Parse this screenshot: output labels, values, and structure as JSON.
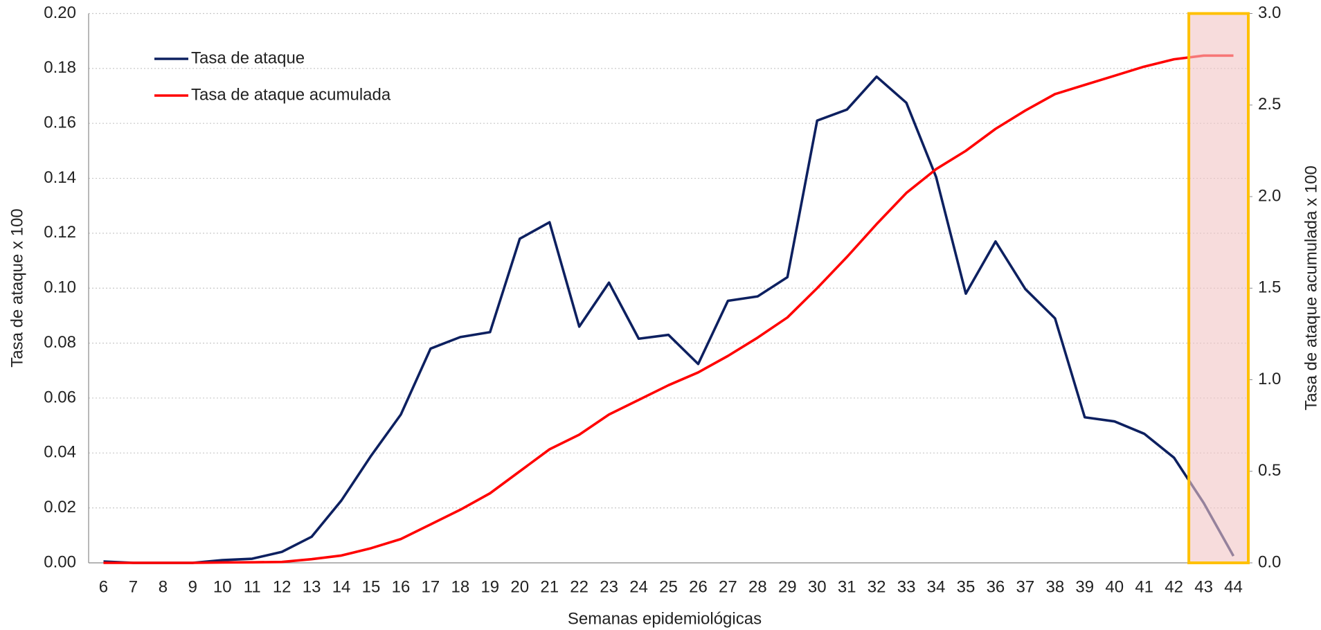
{
  "chart_data": {
    "type": "line",
    "x_label": "Semanas epidemiológicas",
    "y_label": "Tasa de ataque x 100",
    "y2_label": "Tasa de ataque acumulada x 100",
    "x": [
      6,
      7,
      8,
      9,
      10,
      11,
      12,
      13,
      14,
      15,
      16,
      17,
      18,
      19,
      20,
      21,
      22,
      23,
      24,
      25,
      26,
      27,
      28,
      29,
      30,
      31,
      32,
      33,
      34,
      35,
      36,
      37,
      38,
      39,
      40,
      41,
      42,
      43,
      44
    ],
    "xticks": [
      6,
      7,
      8,
      9,
      10,
      11,
      12,
      13,
      14,
      15,
      16,
      17,
      18,
      19,
      20,
      21,
      22,
      23,
      24,
      25,
      26,
      27,
      28,
      29,
      30,
      31,
      32,
      33,
      34,
      35,
      36,
      37,
      38,
      39,
      40,
      41,
      42,
      43,
      44
    ],
    "xlim": [
      5.5,
      44.5
    ],
    "series": [
      {
        "name": "Tasa de ataque",
        "color": "#0d2060",
        "axis": "y",
        "values": [
          0.0005,
          0,
          0,
          0,
          0.001,
          0.0015,
          0.004,
          0.0095,
          0.0227,
          0.039,
          0.054,
          0.078,
          0.0822,
          0.084,
          0.118,
          0.124,
          0.086,
          0.102,
          0.0816,
          0.083,
          0.0724,
          0.0954,
          0.097,
          0.104,
          0.161,
          0.165,
          0.177,
          0.1675,
          0.1405,
          0.098,
          0.117,
          0.0997,
          0.089,
          0.053,
          0.0515,
          0.047,
          0.0383,
          0.0218,
          0.0025
        ]
      },
      {
        "name": "Tasa de ataque acumulada",
        "color": "#ff0000",
        "axis": "y2",
        "values": [
          0,
          0,
          0,
          0,
          0.002,
          0.003,
          0.005,
          0.02,
          0.04,
          0.08,
          0.13,
          0.21,
          0.29,
          0.38,
          0.5,
          0.62,
          0.7,
          0.81,
          0.89,
          0.97,
          1.04,
          1.13,
          1.23,
          1.34,
          1.5,
          1.67,
          1.85,
          2.02,
          2.15,
          2.25,
          2.37,
          2.47,
          2.56,
          2.61,
          2.66,
          2.71,
          2.75,
          2.77,
          2.77
        ]
      }
    ],
    "ylim": [
      0,
      0.2
    ],
    "yticks": [
      {
        "value": 0,
        "label": "0.00"
      },
      {
        "value": 0.02,
        "label": "0.02"
      },
      {
        "value": 0.04,
        "label": "0.04"
      },
      {
        "value": 0.06,
        "label": "0.06"
      },
      {
        "value": 0.08,
        "label": "0.08"
      },
      {
        "value": 0.1,
        "label": "0.10"
      },
      {
        "value": 0.12,
        "label": "0.12"
      },
      {
        "value": 0.14,
        "label": "0.14"
      },
      {
        "value": 0.16,
        "label": "0.16"
      },
      {
        "value": 0.18,
        "label": "0.18"
      },
      {
        "value": 0.2,
        "label": "0.20"
      }
    ],
    "y2lim": [
      0,
      3
    ],
    "y2ticks": [
      {
        "value": 0,
        "label": "0.0"
      },
      {
        "value": 0.5,
        "label": "0.5"
      },
      {
        "value": 1,
        "label": "1.0"
      },
      {
        "value": 1.5,
        "label": "1.5"
      },
      {
        "value": 2,
        "label": "2.0"
      },
      {
        "value": 2.5,
        "label": "2.5"
      },
      {
        "value": 3,
        "label": "3.0"
      }
    ],
    "grid": true,
    "legend": "upper left",
    "highlight": {
      "x": [
        43,
        44
      ],
      "color": "#f2c4c4",
      "border": "#ffc000"
    }
  }
}
